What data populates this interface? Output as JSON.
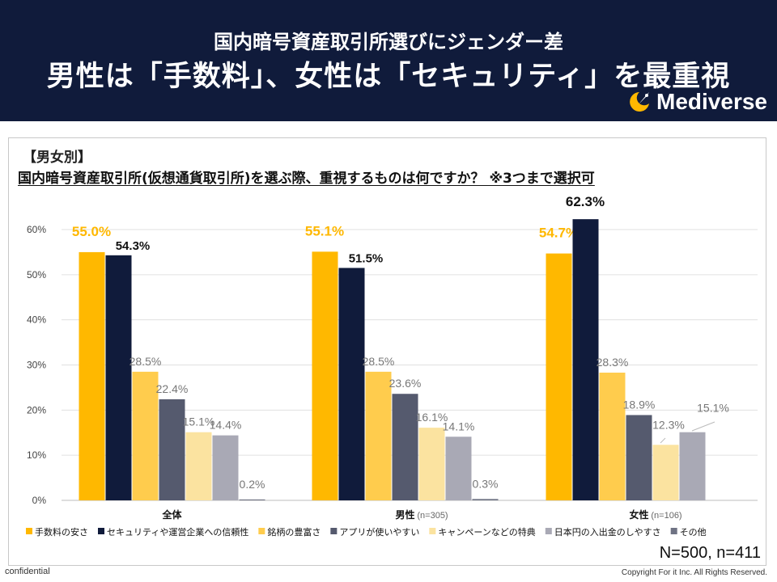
{
  "header": {
    "subtitle": "国内暗号資産取引所選びにジェンダー差",
    "title": "男性は「手数料」、女性は「セキュリティ」を最重視",
    "brand": "Mediverse"
  },
  "panel": {
    "tag": "【男女別】",
    "question": "国内暗号資産取引所(仮想通貨取引所)を選ぶ際、重視するものは何ですか？ ※3つまで選択可"
  },
  "chart_data": {
    "type": "bar",
    "ylim": [
      0,
      60
    ],
    "yticks": [
      "0%",
      "10%",
      "20%",
      "30%",
      "40%",
      "50%",
      "60%"
    ],
    "grid": true,
    "legend_position": "bottom",
    "groups": [
      {
        "label": "全体",
        "note": ""
      },
      {
        "label": "男性",
        "note": "(n=305)"
      },
      {
        "label": "女性",
        "note": "(n=106)"
      }
    ],
    "series": [
      {
        "name": "手数料の安さ",
        "color": "#ffb800",
        "values": [
          55.0,
          55.1,
          54.7
        ],
        "labels": [
          "55.0%",
          "55.1%",
          "54.7%"
        ]
      },
      {
        "name": "セキュリティや運営企業への信頼性",
        "color": "#101b3b",
        "values": [
          54.3,
          51.5,
          62.3
        ],
        "labels": [
          "54.3%",
          "51.5%",
          "62.3%"
        ]
      },
      {
        "name": "銘柄の豊富さ",
        "color": "#ffcc4d",
        "values": [
          28.5,
          28.5,
          28.3
        ],
        "labels": [
          "28.5%",
          "28.5%",
          "28.3%"
        ]
      },
      {
        "name": "アプリが使いやすい",
        "color": "#555a6e",
        "values": [
          22.4,
          23.6,
          18.9
        ],
        "labels": [
          "22.4%",
          "23.6%",
          "18.9%"
        ]
      },
      {
        "name": "キャンペーンなどの特典",
        "color": "#fbe3a0",
        "values": [
          15.1,
          16.1,
          12.3
        ],
        "labels": [
          "15.1%",
          "16.1%",
          "12.3%"
        ]
      },
      {
        "name": "日本円の入出金のしやすさ",
        "color": "#a9a9b5",
        "values": [
          14.4,
          14.1,
          15.1
        ],
        "labels": [
          "14.4%",
          "14.1%",
          "15.1%"
        ]
      },
      {
        "name": "その他",
        "color": "#6f7384",
        "values": [
          0.2,
          0.3,
          0
        ],
        "labels": [
          "0.2%",
          "0.3%",
          ""
        ]
      }
    ]
  },
  "sample_note": "N=500, n=411",
  "footer": {
    "left": "confidential",
    "right": "Copyright For it Inc. All Rights Reserved."
  }
}
